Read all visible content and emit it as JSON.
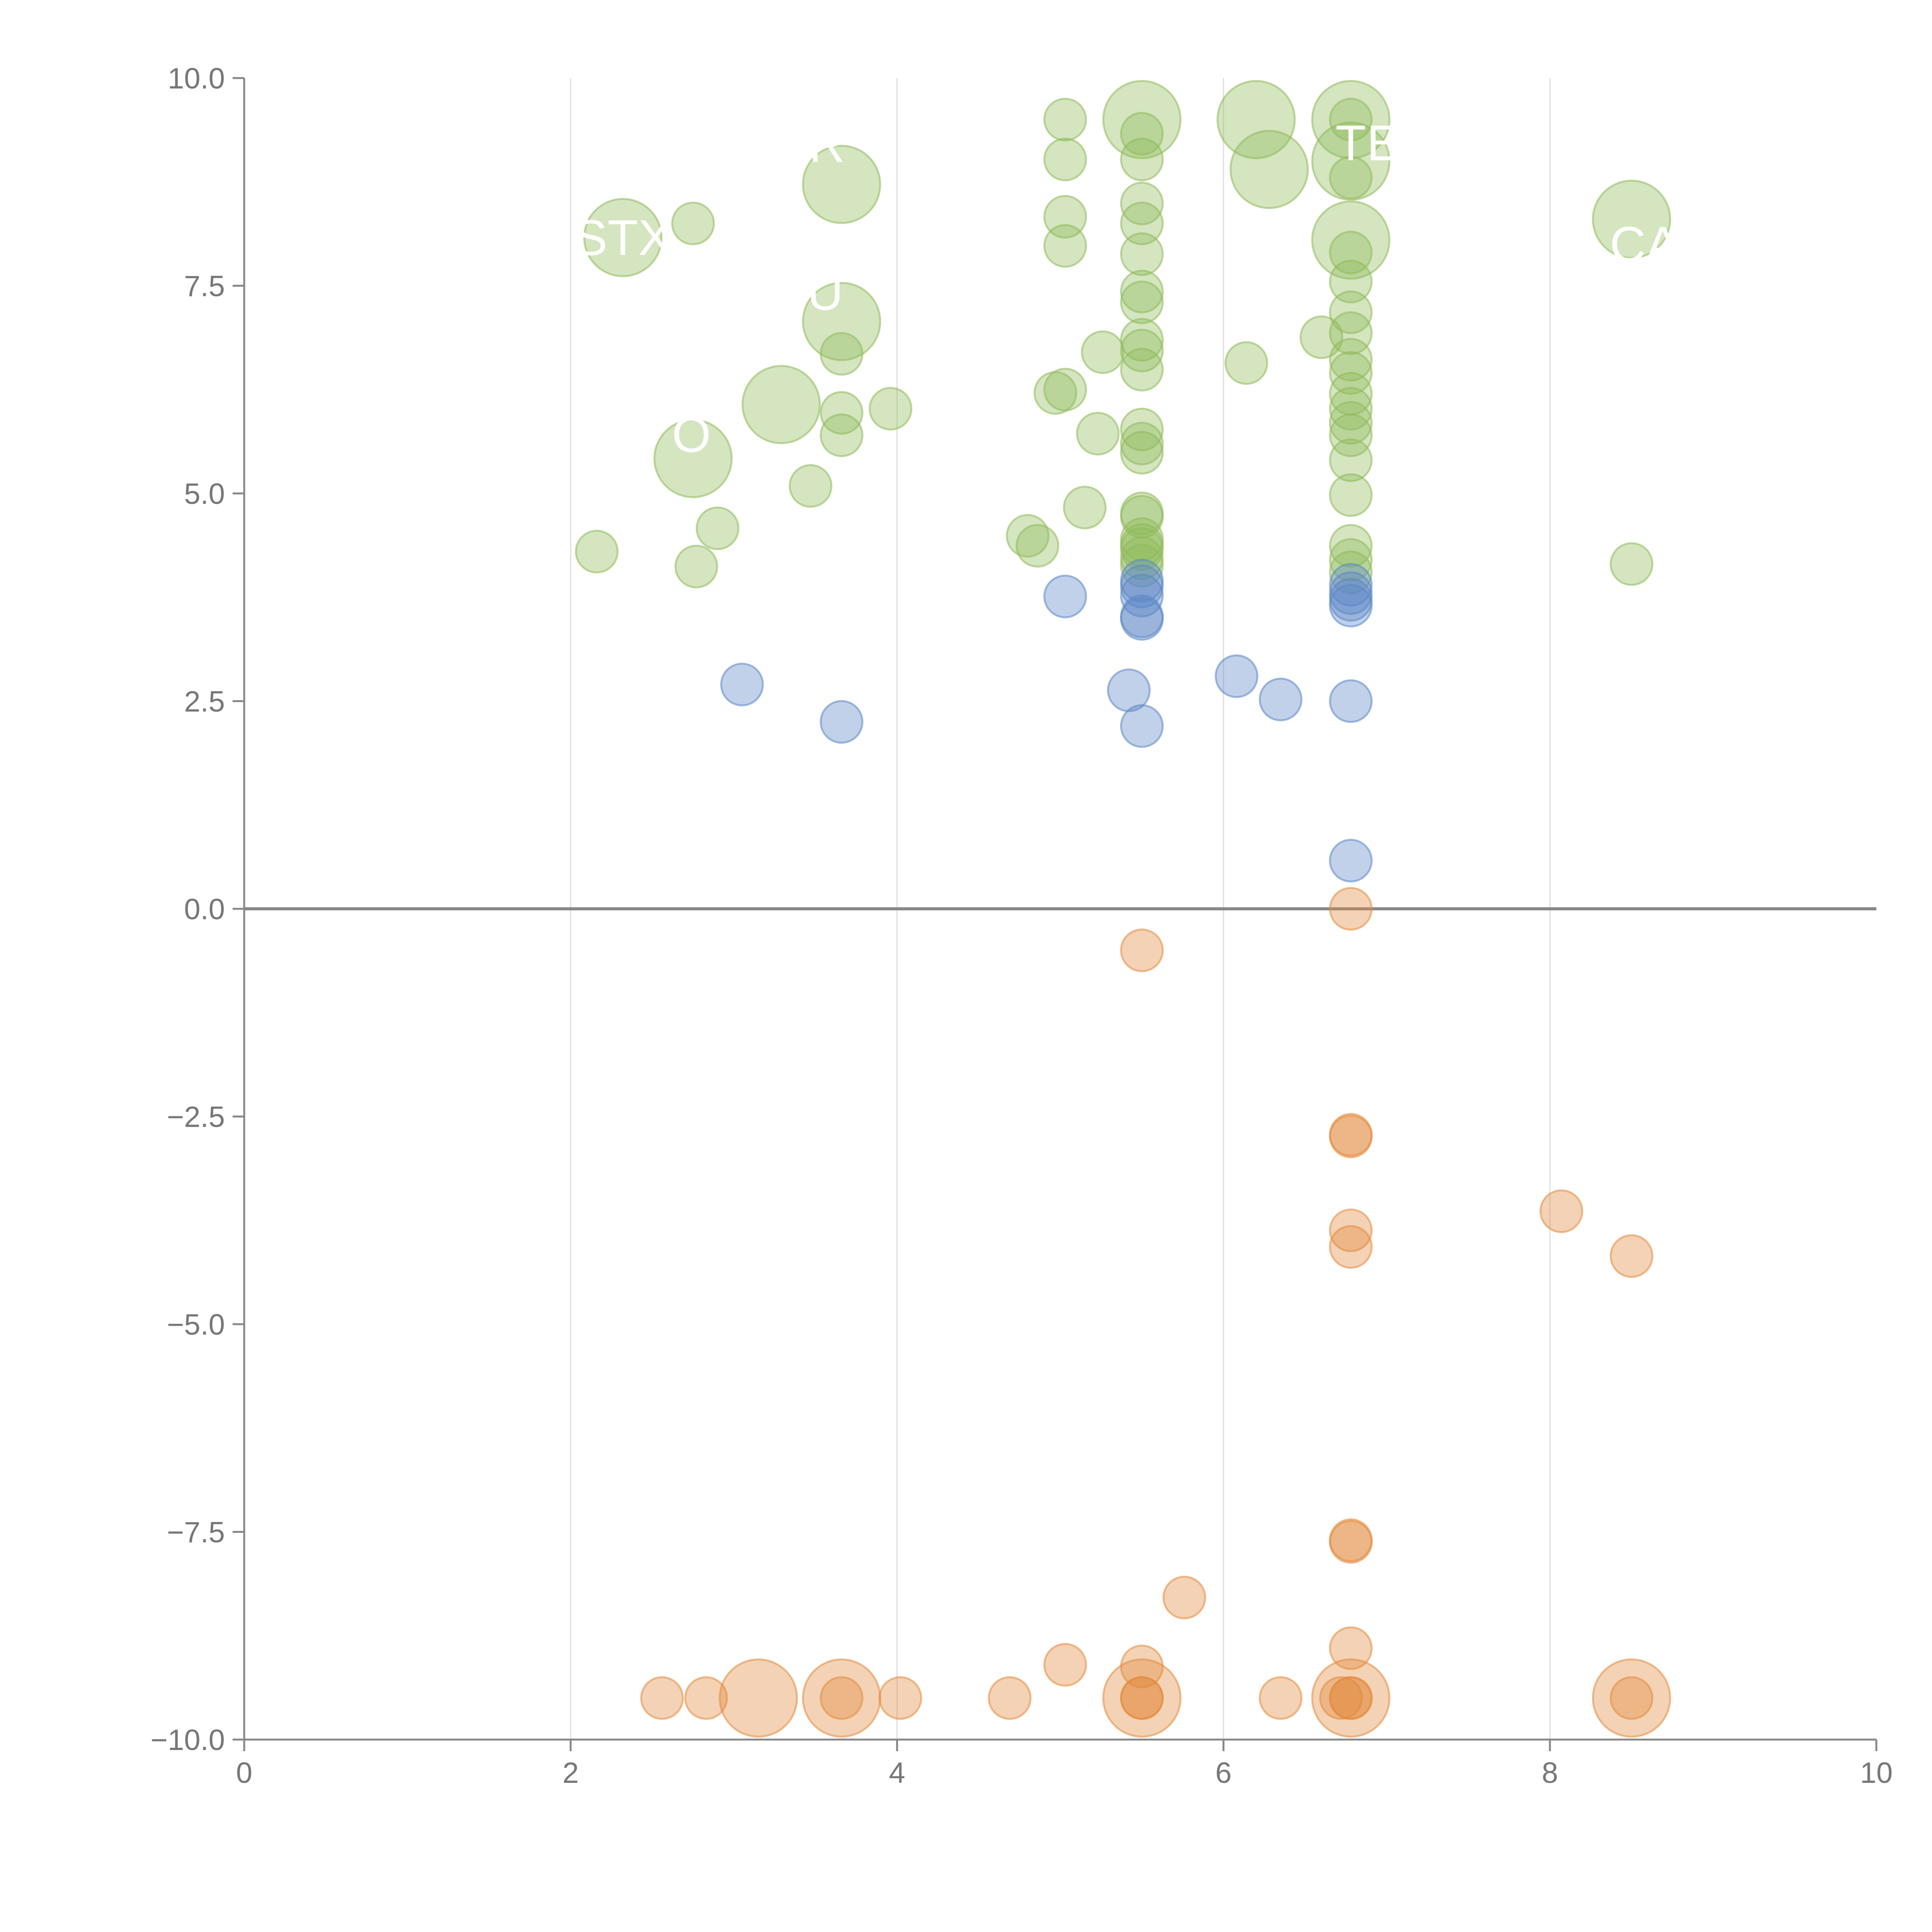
{
  "chart_data": {
    "type": "scatter",
    "title": "",
    "xlabel": "",
    "ylabel": "",
    "xlim": [
      0,
      10
    ],
    "ylim": [
      -10,
      10
    ],
    "x_ticks": [
      "0",
      "2",
      "4",
      "6",
      "8",
      "10"
    ],
    "y_ticks": [
      "10.0",
      "7.5",
      "5.0",
      "2.5",
      "0.0",
      "−2.5",
      "−5.0",
      "−7.5",
      "−10.0"
    ],
    "vertical_gridlines": [
      2,
      4,
      6,
      8
    ],
    "zero_line": true,
    "colors": {
      "green": "#8fba5a",
      "blue": "#5b87c6",
      "orange": "#e38a3d",
      "axis": "#888888",
      "grid": "#dddddd"
    },
    "series": [
      {
        "color": "green",
        "points": [
          [
            2.32,
            8.08,
            2
          ],
          [
            2.75,
            8.25,
            1
          ],
          [
            3.66,
            8.72,
            2
          ],
          [
            3.66,
            7.07,
            2
          ],
          [
            3.66,
            6.68,
            1
          ],
          [
            3.29,
            6.07,
            2
          ],
          [
            3.66,
            5.97,
            1
          ],
          [
            3.96,
            6.02,
            1
          ],
          [
            3.66,
            5.7,
            1
          ],
          [
            2.75,
            5.42,
            2
          ],
          [
            3.47,
            5.09,
            1
          ],
          [
            2.9,
            4.58,
            1
          ],
          [
            2.16,
            4.3,
            1
          ],
          [
            2.77,
            4.12,
            1
          ],
          [
            5.03,
            9.5,
            1
          ],
          [
            5.03,
            9.02,
            1
          ],
          [
            5.03,
            8.33,
            1
          ],
          [
            5.03,
            7.98,
            1
          ],
          [
            5.26,
            6.7,
            1
          ],
          [
            4.97,
            6.21,
            1
          ],
          [
            5.03,
            6.25,
            1
          ],
          [
            5.23,
            5.72,
            1
          ],
          [
            5.15,
            4.83,
            1
          ],
          [
            4.8,
            4.49,
            1
          ],
          [
            4.86,
            4.37,
            1
          ],
          [
            5.5,
            9.5,
            2
          ],
          [
            5.5,
            9.33,
            1
          ],
          [
            5.5,
            9.02,
            1
          ],
          [
            5.5,
            8.49,
            1
          ],
          [
            5.5,
            8.25,
            1
          ],
          [
            5.5,
            7.88,
            1
          ],
          [
            5.5,
            7.43,
            1
          ],
          [
            5.5,
            7.3,
            1
          ],
          [
            5.5,
            6.85,
            1
          ],
          [
            5.5,
            6.72,
            1
          ],
          [
            5.5,
            6.49,
            1
          ],
          [
            5.5,
            5.77,
            1
          ],
          [
            5.5,
            5.6,
            1
          ],
          [
            5.5,
            5.49,
            1
          ],
          [
            5.5,
            4.76,
            1
          ],
          [
            5.5,
            4.72,
            1
          ],
          [
            5.5,
            4.45,
            1
          ],
          [
            5.5,
            4.38,
            1
          ],
          [
            5.5,
            4.33,
            1
          ],
          [
            5.5,
            4.22,
            1
          ],
          [
            5.5,
            4.13,
            1
          ],
          [
            6.2,
            9.5,
            2
          ],
          [
            6.28,
            8.9,
            2
          ],
          [
            6.14,
            6.57,
            1
          ],
          [
            6.6,
            6.88,
            1
          ],
          [
            6.78,
            9.5,
            2
          ],
          [
            6.78,
            9.5,
            1
          ],
          [
            6.78,
            9.0,
            2
          ],
          [
            6.78,
            8.8,
            1
          ],
          [
            6.78,
            8.05,
            2
          ],
          [
            6.78,
            7.9,
            1
          ],
          [
            6.78,
            7.55,
            1
          ],
          [
            6.78,
            7.18,
            1
          ],
          [
            6.78,
            6.93,
            1
          ],
          [
            6.78,
            6.61,
            1
          ],
          [
            6.78,
            6.45,
            1
          ],
          [
            6.78,
            6.2,
            1
          ],
          [
            6.78,
            6.02,
            1
          ],
          [
            6.78,
            5.85,
            1
          ],
          [
            6.78,
            5.7,
            1
          ],
          [
            6.78,
            5.4,
            1
          ],
          [
            6.78,
            4.98,
            1
          ],
          [
            6.78,
            4.37,
            1
          ],
          [
            6.78,
            4.2,
            1
          ],
          [
            6.78,
            4.05,
            1
          ],
          [
            8.5,
            8.3,
            2
          ],
          [
            8.5,
            4.15,
            1
          ]
        ]
      },
      {
        "color": "blue",
        "points": [
          [
            3.05,
            2.7,
            1
          ],
          [
            3.66,
            2.25,
            1
          ],
          [
            5.03,
            3.76,
            1
          ],
          [
            5.5,
            3.95,
            1
          ],
          [
            5.5,
            3.88,
            1
          ],
          [
            5.5,
            3.77,
            1
          ],
          [
            5.5,
            3.52,
            1
          ],
          [
            5.5,
            3.49,
            1
          ],
          [
            5.42,
            2.63,
            1
          ],
          [
            5.5,
            2.2,
            1
          ],
          [
            6.08,
            2.8,
            1
          ],
          [
            6.35,
            2.52,
            1
          ],
          [
            6.78,
            3.9,
            1
          ],
          [
            6.78,
            3.8,
            1
          ],
          [
            6.78,
            3.72,
            1
          ],
          [
            6.78,
            3.65,
            1
          ],
          [
            6.78,
            2.5,
            1
          ],
          [
            6.78,
            0.58,
            1
          ]
        ]
      },
      {
        "color": "orange",
        "points": [
          [
            6.78,
            0.0,
            1
          ],
          [
            5.5,
            -0.5,
            1
          ],
          [
            6.78,
            -2.72,
            1
          ],
          [
            6.78,
            -2.74,
            1
          ],
          [
            6.78,
            -3.87,
            1
          ],
          [
            6.78,
            -4.07,
            1
          ],
          [
            8.07,
            -3.64,
            1
          ],
          [
            8.5,
            -4.18,
            1
          ],
          [
            6.78,
            -7.6,
            1
          ],
          [
            6.78,
            -7.62,
            1
          ],
          [
            5.76,
            -8.29,
            1
          ],
          [
            6.78,
            -8.9,
            1
          ],
          [
            5.03,
            -9.1,
            1
          ],
          [
            5.5,
            -9.12,
            1
          ],
          [
            2.56,
            -9.5,
            1
          ],
          [
            2.83,
            -9.5,
            1
          ],
          [
            3.15,
            -9.5,
            2
          ],
          [
            3.66,
            -9.5,
            2
          ],
          [
            3.66,
            -9.5,
            1
          ],
          [
            4.02,
            -9.5,
            1
          ],
          [
            4.69,
            -9.5,
            1
          ],
          [
            5.5,
            -9.5,
            2
          ],
          [
            5.5,
            -9.5,
            1
          ],
          [
            5.5,
            -9.5,
            1
          ],
          [
            6.35,
            -9.5,
            1
          ],
          [
            6.72,
            -9.5,
            1
          ],
          [
            6.78,
            -9.5,
            2
          ],
          [
            6.78,
            -9.5,
            1
          ],
          [
            6.78,
            -9.5,
            1
          ],
          [
            8.5,
            -9.5,
            2
          ],
          [
            8.5,
            -9.5,
            1
          ]
        ]
      }
    ],
    "labels": [
      {
        "text": "STX",
        "x": 2.32,
        "y": 8.08
      },
      {
        "text": "R",
        "x": 3.57,
        "y": 9.2
      },
      {
        "text": "U",
        "x": 3.56,
        "y": 7.42
      },
      {
        "text": "O",
        "x": 2.74,
        "y": 5.71
      },
      {
        "text": "T",
        "x": 6.78,
        "y": 9.22
      },
      {
        "text": "E",
        "x": 6.98,
        "y": 9.22
      },
      {
        "text": "CA",
        "x": 8.58,
        "y": 8.0
      }
    ]
  }
}
